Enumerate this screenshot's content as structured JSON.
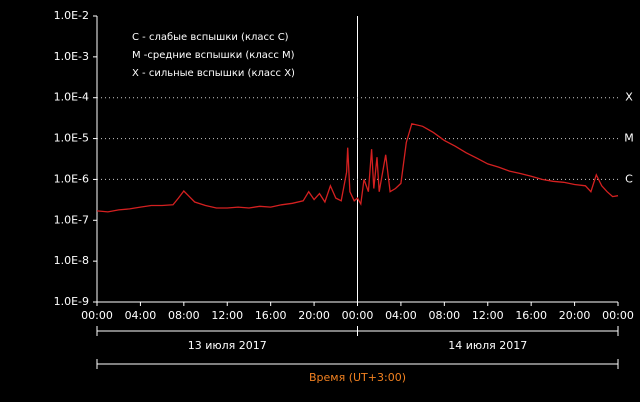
{
  "chart_data": {
    "type": "line",
    "legend_text": [
      "C - слабые вспышки (класс C)",
      "M -средние вспышки (класс M)",
      "X - сильные вспышки (класс X)"
    ],
    "x": [
      0,
      1,
      2,
      3,
      4,
      5,
      6,
      7,
      7.5,
      8,
      8.5,
      9,
      10,
      11,
      12,
      13,
      14,
      15,
      16,
      17,
      18,
      19,
      19.5,
      20,
      20.5,
      21,
      21.5,
      22,
      22.5,
      23,
      23.1,
      23.3,
      23.7,
      24,
      24.3,
      24.6,
      25,
      25.3,
      25.5,
      25.8,
      26,
      26.6,
      27,
      27.5,
      28,
      28.5,
      29,
      30,
      31,
      32,
      33,
      34,
      35,
      36,
      37,
      38,
      39,
      40,
      41,
      42,
      43,
      44,
      45,
      45.5,
      46,
      46.5,
      47,
      47.5,
      48
    ],
    "values": [
      1.7e-07,
      1.6e-07,
      1.8e-07,
      1.9e-07,
      2.1e-07,
      2.3e-07,
      2.3e-07,
      2.4e-07,
      3.5e-07,
      5.2e-07,
      3.8e-07,
      2.8e-07,
      2.3e-07,
      2e-07,
      2e-07,
      2.1e-07,
      2e-07,
      2.2e-07,
      2.1e-07,
      2.4e-07,
      2.6e-07,
      3e-07,
      5e-07,
      3.2e-07,
      4.5e-07,
      2.8e-07,
      7e-07,
      3.5e-07,
      3e-07,
      1.5e-06,
      6e-06,
      5e-07,
      3e-07,
      3.5e-07,
      2.5e-07,
      1e-06,
      5e-07,
      5.5e-06,
      6e-07,
      3.5e-06,
      5e-07,
      4e-06,
      5e-07,
      6e-07,
      8e-07,
      8e-06,
      2.3e-05,
      2e-05,
      1.4e-05,
      9e-06,
      6.5e-06,
      4.5e-06,
      3.3e-06,
      2.4e-06,
      2e-06,
      1.6e-06,
      1.4e-06,
      1.2e-06,
      1e-06,
      9e-07,
      8.5e-07,
      7.5e-07,
      7e-07,
      5e-07,
      1.3e-06,
      7e-07,
      5e-07,
      3.8e-07,
      4e-07
    ],
    "color": "#d42020",
    "log_y": true,
    "xlim": [
      0,
      48
    ],
    "xticks": [
      {
        "value": 0,
        "label": "00:00"
      },
      {
        "value": 4,
        "label": "04:00"
      },
      {
        "value": 8,
        "label": "08:00"
      },
      {
        "value": 12,
        "label": "12:00"
      },
      {
        "value": 16,
        "label": "16:00"
      },
      {
        "value": 20,
        "label": "20:00"
      },
      {
        "value": 24,
        "label": "00:00"
      },
      {
        "value": 28,
        "label": "04:00"
      },
      {
        "value": 32,
        "label": "08:00"
      },
      {
        "value": 36,
        "label": "12:00"
      },
      {
        "value": 40,
        "label": "16:00"
      },
      {
        "value": 44,
        "label": "20:00"
      },
      {
        "value": 48,
        "label": "00:00"
      }
    ],
    "ylim": [
      1e-09,
      0.01
    ],
    "yticks": [
      {
        "value": 0.01,
        "label": "1.0E-2"
      },
      {
        "value": 0.001,
        "label": "1.0E-3"
      },
      {
        "value": 0.0001,
        "label": "1.0E-4"
      },
      {
        "value": 1e-05,
        "label": "1.0E-5"
      },
      {
        "value": 1e-06,
        "label": "1.0E-6"
      },
      {
        "value": 1e-07,
        "label": "1.0E-7"
      },
      {
        "value": 1e-08,
        "label": "1.0E-8"
      },
      {
        "value": 1e-09,
        "label": "1.0E-9"
      }
    ],
    "flare_levels": [
      {
        "label": "X",
        "value": 0.0001
      },
      {
        "label": "M",
        "value": 1e-05
      },
      {
        "label": "C",
        "value": 1e-06
      }
    ],
    "day_labels": [
      "13 июля 2017",
      "14 июля 2017"
    ],
    "xlabel": "Время (UT+3:00)"
  }
}
